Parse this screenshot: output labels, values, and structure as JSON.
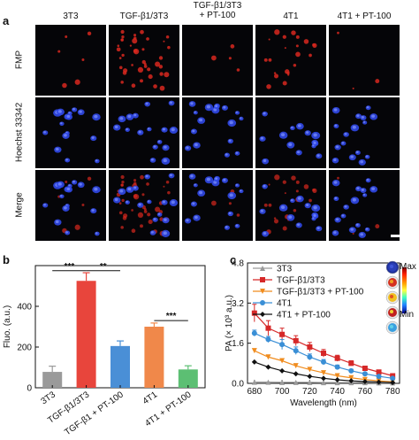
{
  "panel_a": {
    "letter": "a",
    "columns": [
      "3T3",
      "TGF-β1/3T3",
      "TGF-β1/3T3\n+ PT-100",
      "4T1",
      "4T1 + PT-100"
    ],
    "rows": [
      "FMP",
      "Hoechst 33342",
      "Merge"
    ],
    "colors": {
      "fmp": "#d8281e",
      "hoechst": "#3048e8",
      "background": "#050508"
    }
  },
  "chart_data": [
    {
      "type": "bar",
      "panel_letter": "b",
      "categories": [
        "3T3",
        "TGF-β1/3T3",
        "TGF-β1 + PT-100",
        "4T1",
        "4T1 + PT-100"
      ],
      "values": [
        78,
        525,
        205,
        300,
        90
      ],
      "errors": [
        28,
        40,
        25,
        18,
        18
      ],
      "colors": [
        "#9a9a9a",
        "#e8453c",
        "#4a8fd6",
        "#f0884a",
        "#5cbf73"
      ],
      "ylabel": "Fluo. (a.u.)",
      "ylim": [
        0,
        600
      ],
      "yticks": [
        0,
        200,
        400
      ],
      "significance": [
        {
          "from": 0,
          "to": 1,
          "label": "***"
        },
        {
          "from": 1,
          "to": 2,
          "label": "**"
        },
        {
          "from": 3,
          "to": 4,
          "label": "***"
        }
      ]
    },
    {
      "type": "line",
      "panel_letter": "c",
      "x": [
        680,
        690,
        700,
        710,
        720,
        730,
        740,
        750,
        760,
        770,
        780
      ],
      "series": [
        {
          "name": "3T3",
          "color": "#9a9a9a",
          "marker": "triangle-up",
          "values": [
            0.05,
            0.05,
            0.04,
            0.04,
            0.04,
            0.03,
            0.03,
            0.03,
            0.03,
            0.02,
            0.02
          ]
        },
        {
          "name": "TGF-β1/3T3",
          "color": "#d62828",
          "marker": "square",
          "values": [
            2.8,
            2.2,
            1.95,
            1.7,
            1.45,
            1.2,
            1.0,
            0.8,
            0.6,
            0.45,
            0.3
          ],
          "errors": [
            0.35,
            0.3,
            0.25,
            0.2,
            0.18,
            0.15,
            0.12,
            0.1,
            0.08,
            0.06,
            0.05
          ]
        },
        {
          "name": "TGF-β1/3T3  + PT-100",
          "color": "#f08c1e",
          "marker": "triangle-down",
          "values": [
            1.3,
            1.05,
            0.9,
            0.7,
            0.55,
            0.42,
            0.3,
            0.22,
            0.15,
            0.1,
            0.06
          ]
        },
        {
          "name": "4T1",
          "color": "#3a8fd6",
          "marker": "circle",
          "values": [
            2.0,
            1.75,
            1.55,
            1.3,
            1.05,
            0.85,
            0.65,
            0.5,
            0.38,
            0.28,
            0.2
          ],
          "errors": [
            0.12,
            0.12,
            0.2,
            0.15,
            0.12,
            0.1,
            0.08,
            0.06,
            0.05,
            0.04,
            0.03
          ]
        },
        {
          "name": "4T1 + PT-100",
          "color": "#111111",
          "marker": "diamond",
          "values": [
            0.85,
            0.65,
            0.5,
            0.38,
            0.28,
            0.2,
            0.14,
            0.1,
            0.07,
            0.05,
            0.03
          ]
        }
      ],
      "xlabel": "Wavelength (nm)",
      "ylabel": "PA (× 10³ a.u.)",
      "xlim": [
        675,
        785
      ],
      "ylim": [
        0,
        4.8
      ],
      "xticks": [
        680,
        700,
        720,
        740,
        760,
        780
      ],
      "yticks": [
        0.0,
        1.6,
        3.2,
        4.8
      ],
      "colorbar": {
        "max_label": "Max",
        "min_label": "Min"
      }
    }
  ]
}
